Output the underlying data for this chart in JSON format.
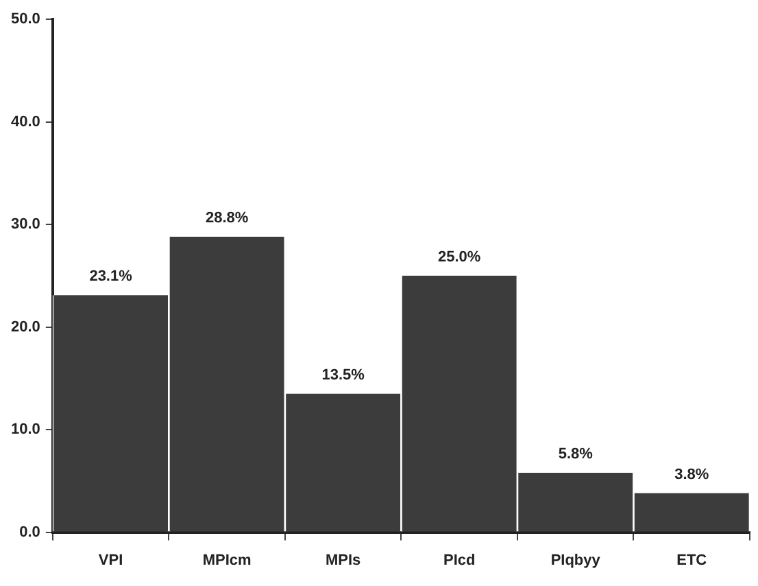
{
  "chart_data": {
    "type": "bar",
    "categories": [
      "VPI",
      "MPIcm",
      "MPIs",
      "PIcd",
      "PIqbyy",
      "ETC"
    ],
    "values": [
      23.1,
      28.8,
      13.5,
      25.0,
      5.8,
      3.8
    ],
    "color": "#3c3c3c",
    "value_labels": [
      "23.1%",
      "28.8%",
      "13.5%",
      "25.0%",
      "5.8%",
      "3.8%"
    ],
    "ylim": [
      0,
      50
    ],
    "yticks": [
      {
        "value": 0,
        "label": "0.0"
      },
      {
        "value": 10,
        "label": "10.0"
      },
      {
        "value": 20,
        "label": "20.0"
      },
      {
        "value": 30,
        "label": "30.0"
      },
      {
        "value": 40,
        "label": "40.0"
      },
      {
        "value": 50,
        "label": "50.0"
      }
    ],
    "grid": false,
    "legend": false
  }
}
